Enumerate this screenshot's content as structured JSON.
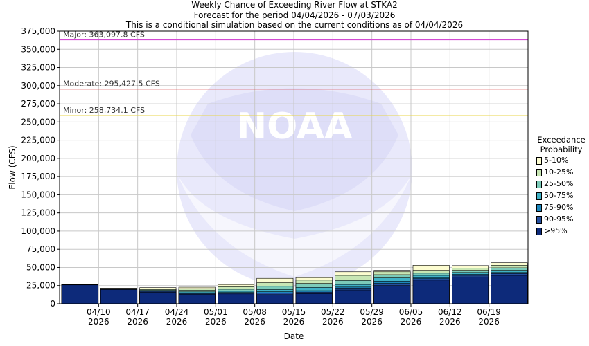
{
  "header": {
    "line1": "Weekly Chance of Exceeding River Flow at STKA2",
    "line2": "Forecast for the period 04/04/2026 - 07/03/2026",
    "line3": "This is a conditional simulation based on the current conditions as of 04/04/2026"
  },
  "watermark": {
    "text": "NATIONAL OCEANIC AND ATMOSPHERIC ADMINISTRATION U.S. DEPARTMENT OF COMMERCE NOAA"
  },
  "legend": {
    "title_line1": "Exceedance",
    "title_line2": "Probability",
    "items": [
      {
        "label": "5-10%",
        "color": "#fcfcd0"
      },
      {
        "label": "10-25%",
        "color": "#c8e6b4"
      },
      {
        "label": "25-50%",
        "color": "#7ccbb9"
      },
      {
        "label": "50-75%",
        "color": "#3fb2c6"
      },
      {
        "label": "75-90%",
        "color": "#1d88bd"
      },
      {
        "label": "90-95%",
        "color": "#244fa0"
      },
      {
        "label": ">95%",
        "color": "#0d2a7a"
      }
    ]
  },
  "chart_data": {
    "type": "bar",
    "stacked": true,
    "xlabel": "Date",
    "ylabel": "Flow (CFS)",
    "ylim": [
      0,
      375000
    ],
    "yticks": [
      0,
      25000,
      50000,
      75000,
      100000,
      125000,
      150000,
      175000,
      200000,
      225000,
      250000,
      275000,
      300000,
      325000,
      350000,
      375000
    ],
    "ytick_labels": [
      "0",
      "25,000",
      "50,000",
      "75,000",
      "100,000",
      "125,000",
      "150,000",
      "175,000",
      "200,000",
      "225,000",
      "250,000",
      "275,000",
      "300,000",
      "325,000",
      "350,000",
      "375,000"
    ],
    "xtick_labels": [
      {
        "line1": "04/10",
        "line2": "2026"
      },
      {
        "line1": "04/17",
        "line2": "2026"
      },
      {
        "line1": "04/24",
        "line2": "2026"
      },
      {
        "line1": "05/01",
        "line2": "2026"
      },
      {
        "line1": "05/08",
        "line2": "2026"
      },
      {
        "line1": "05/15",
        "line2": "2026"
      },
      {
        "line1": "05/22",
        "line2": "2026"
      },
      {
        "line1": "05/29",
        "line2": "2026"
      },
      {
        "line1": "06/05",
        "line2": "2026"
      },
      {
        "line1": "06/12",
        "line2": "2026"
      },
      {
        "line1": "06/19",
        "line2": "2026"
      }
    ],
    "grid": true,
    "thresholds": [
      {
        "label": "Major: 363,097.8 CFS",
        "value": 363097.8,
        "color": "#d24ad2"
      },
      {
        "label": "Moderate: 295,427.5 CFS",
        "value": 295427.5,
        "color": "#d83030"
      },
      {
        "label": "Minor: 258,734.1 CFS",
        "value": 258734.1,
        "color": "#e8d64a"
      }
    ],
    "weeks": [
      {
        "tops": [
          26500,
          26400,
          26300,
          26200,
          26100,
          26000,
          25900
        ]
      },
      {
        "tops": [
          21500,
          21000,
          20700,
          20400,
          20100,
          19900,
          19500
        ]
      },
      {
        "tops": [
          22200,
          20600,
          19400,
          18400,
          17600,
          17000,
          15800
        ]
      },
      {
        "tops": [
          22800,
          20800,
          18500,
          16300,
          14700,
          13800,
          12900
        ]
      },
      {
        "tops": [
          26500,
          23500,
          20000,
          17200,
          15500,
          14500,
          13500
        ]
      },
      {
        "tops": [
          35000,
          29000,
          24000,
          19500,
          16500,
          14800,
          12500
        ]
      },
      {
        "tops": [
          36000,
          32500,
          28000,
          22500,
          18000,
          16000,
          14000
        ]
      },
      {
        "tops": [
          44000,
          39000,
          32000,
          26500,
          23000,
          21500,
          19000
        ]
      },
      {
        "tops": [
          46000,
          44000,
          40000,
          35500,
          31000,
          28000,
          25000
        ]
      },
      {
        "tops": [
          53000,
          46000,
          42000,
          39000,
          36000,
          34500,
          32500
        ]
      },
      {
        "tops": [
          52500,
          49000,
          46000,
          43000,
          40500,
          39000,
          37000
        ]
      },
      {
        "tops": [
          56500,
          53000,
          49500,
          46000,
          43000,
          41500,
          39000
        ]
      }
    ]
  }
}
